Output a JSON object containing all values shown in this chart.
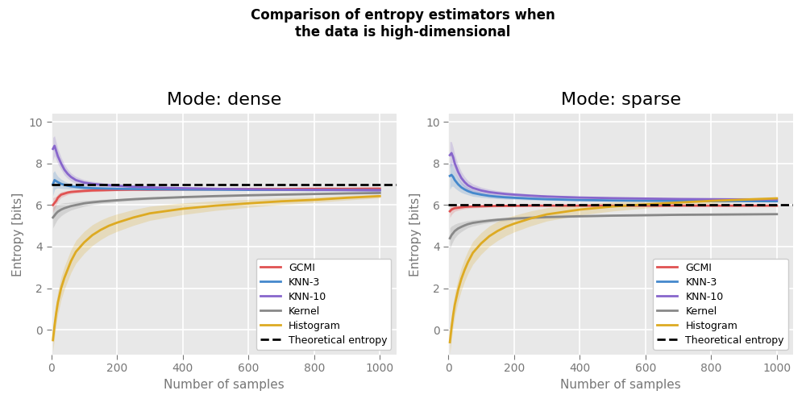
{
  "title": "Comparison of entropy estimators when\nthe data is high-dimensional",
  "title_fontsize": 12,
  "title_fontweight": "bold",
  "subplot_titles": [
    "Mode: dense",
    "Mode: sparse"
  ],
  "subplot_title_fontsize": 16,
  "xlabel": "Number of samples",
  "ylabel": "Entropy [bits]",
  "xlim": [
    0,
    1050
  ],
  "ylim": [
    -1.2,
    10.4
  ],
  "yticks": [
    0,
    2,
    4,
    6,
    8,
    10
  ],
  "xticks": [
    0,
    200,
    400,
    600,
    800,
    1000
  ],
  "theoretical_entropy_dense": 7.0,
  "theoretical_entropy_sparse": 6.0,
  "background_color": "#e8e8e8",
  "grid_color": "white",
  "colors": {
    "GCMI": "#e05252",
    "KNN-3": "#4488cc",
    "KNN-10": "#8866cc",
    "Kernel": "#888888",
    "Histogram": "#ddaa22"
  },
  "alpha_fill": 0.22,
  "line_width": 2.0,
  "legend_entries": [
    "GCMI",
    "KNN-3",
    "KNN-10",
    "Kernel",
    "Histogram",
    "Theoretical entropy"
  ],
  "dense": {
    "x": [
      5,
      10,
      15,
      20,
      30,
      40,
      50,
      60,
      75,
      100,
      125,
      150,
      175,
      200,
      250,
      300,
      400,
      500,
      600,
      700,
      800,
      900,
      1000
    ],
    "GCMI_mean": [
      6.0,
      6.1,
      6.2,
      6.35,
      6.5,
      6.55,
      6.6,
      6.63,
      6.65,
      6.68,
      6.7,
      6.71,
      6.72,
      6.73,
      6.74,
      6.74,
      6.75,
      6.76,
      6.77,
      6.77,
      6.78,
      6.78,
      6.79
    ],
    "GCMI_std": [
      0.35,
      0.28,
      0.22,
      0.18,
      0.14,
      0.12,
      0.1,
      0.09,
      0.08,
      0.07,
      0.06,
      0.06,
      0.05,
      0.05,
      0.04,
      0.04,
      0.04,
      0.03,
      0.03,
      0.03,
      0.02,
      0.02,
      0.02
    ],
    "KNN3_mean": [
      7.0,
      7.2,
      7.15,
      7.1,
      7.02,
      6.97,
      6.93,
      6.9,
      6.87,
      6.83,
      6.81,
      6.8,
      6.79,
      6.78,
      6.77,
      6.76,
      6.75,
      6.74,
      6.73,
      6.73,
      6.72,
      6.72,
      6.71
    ],
    "KNN3_std": [
      0.55,
      0.45,
      0.35,
      0.28,
      0.22,
      0.18,
      0.15,
      0.13,
      0.11,
      0.09,
      0.08,
      0.07,
      0.06,
      0.06,
      0.05,
      0.05,
      0.04,
      0.04,
      0.03,
      0.03,
      0.03,
      0.02,
      0.02
    ],
    "KNN10_mean": [
      8.7,
      8.85,
      8.6,
      8.35,
      8.0,
      7.7,
      7.5,
      7.35,
      7.2,
      7.08,
      7.02,
      6.98,
      6.95,
      6.93,
      6.88,
      6.85,
      6.81,
      6.78,
      6.76,
      6.74,
      6.73,
      6.72,
      6.71
    ],
    "KNN10_std": [
      0.55,
      0.48,
      0.42,
      0.37,
      0.3,
      0.26,
      0.22,
      0.19,
      0.17,
      0.14,
      0.12,
      0.11,
      0.09,
      0.08,
      0.07,
      0.06,
      0.05,
      0.05,
      0.04,
      0.04,
      0.04,
      0.03,
      0.03
    ],
    "Kernel_mean": [
      5.4,
      5.5,
      5.6,
      5.68,
      5.78,
      5.85,
      5.9,
      5.95,
      6.0,
      6.08,
      6.13,
      6.17,
      6.2,
      6.23,
      6.28,
      6.32,
      6.38,
      6.43,
      6.47,
      6.5,
      6.53,
      6.56,
      6.58
    ],
    "Kernel_std": [
      0.5,
      0.45,
      0.4,
      0.36,
      0.3,
      0.26,
      0.22,
      0.19,
      0.17,
      0.14,
      0.12,
      0.1,
      0.09,
      0.08,
      0.07,
      0.06,
      0.05,
      0.04,
      0.04,
      0.04,
      0.03,
      0.03,
      0.03
    ],
    "Histogram_mean": [
      -0.5,
      0.2,
      0.8,
      1.3,
      2.0,
      2.5,
      2.9,
      3.3,
      3.75,
      4.2,
      4.55,
      4.8,
      5.0,
      5.15,
      5.4,
      5.6,
      5.82,
      5.97,
      6.08,
      6.18,
      6.25,
      6.35,
      6.43
    ],
    "Histogram_std": [
      0.55,
      0.55,
      0.55,
      0.55,
      0.55,
      0.55,
      0.55,
      0.55,
      0.55,
      0.53,
      0.5,
      0.47,
      0.44,
      0.42,
      0.38,
      0.34,
      0.28,
      0.23,
      0.19,
      0.16,
      0.13,
      0.11,
      0.09
    ]
  },
  "sparse": {
    "x": [
      5,
      10,
      15,
      20,
      30,
      40,
      50,
      60,
      75,
      100,
      125,
      150,
      175,
      200,
      250,
      300,
      400,
      500,
      600,
      700,
      800,
      900,
      1000
    ],
    "GCMI_mean": [
      5.7,
      5.78,
      5.82,
      5.85,
      5.87,
      5.89,
      5.91,
      5.92,
      5.93,
      5.94,
      5.95,
      5.96,
      5.96,
      5.96,
      5.97,
      5.97,
      5.97,
      5.97,
      5.97,
      5.97,
      5.97,
      5.97,
      5.97
    ],
    "GCMI_std": [
      0.3,
      0.24,
      0.19,
      0.15,
      0.12,
      0.1,
      0.09,
      0.08,
      0.07,
      0.06,
      0.05,
      0.05,
      0.04,
      0.04,
      0.03,
      0.03,
      0.03,
      0.02,
      0.02,
      0.02,
      0.02,
      0.02,
      0.02
    ],
    "KNN3_mean": [
      7.4,
      7.45,
      7.35,
      7.2,
      7.0,
      6.85,
      6.75,
      6.67,
      6.58,
      6.5,
      6.44,
      6.4,
      6.37,
      6.35,
      6.31,
      6.28,
      6.24,
      6.22,
      6.21,
      6.2,
      6.19,
      6.19,
      6.18
    ],
    "KNN3_std": [
      0.65,
      0.55,
      0.45,
      0.38,
      0.3,
      0.25,
      0.21,
      0.18,
      0.16,
      0.13,
      0.11,
      0.1,
      0.09,
      0.08,
      0.07,
      0.06,
      0.05,
      0.04,
      0.04,
      0.04,
      0.03,
      0.03,
      0.03
    ],
    "KNN10_mean": [
      8.4,
      8.5,
      8.3,
      8.0,
      7.6,
      7.3,
      7.1,
      6.95,
      6.82,
      6.7,
      6.62,
      6.57,
      6.53,
      6.5,
      6.45,
      6.41,
      6.36,
      6.33,
      6.31,
      6.29,
      6.28,
      6.27,
      6.26
    ],
    "KNN10_std": [
      0.65,
      0.55,
      0.48,
      0.42,
      0.35,
      0.3,
      0.26,
      0.22,
      0.19,
      0.16,
      0.14,
      0.12,
      0.11,
      0.1,
      0.08,
      0.07,
      0.06,
      0.05,
      0.05,
      0.04,
      0.04,
      0.04,
      0.03
    ],
    "Kernel_mean": [
      4.4,
      4.55,
      4.65,
      4.75,
      4.87,
      4.95,
      5.02,
      5.08,
      5.14,
      5.2,
      5.25,
      5.29,
      5.32,
      5.35,
      5.39,
      5.42,
      5.46,
      5.49,
      5.51,
      5.53,
      5.54,
      5.55,
      5.56
    ],
    "Kernel_std": [
      0.5,
      0.44,
      0.38,
      0.33,
      0.27,
      0.23,
      0.2,
      0.17,
      0.15,
      0.12,
      0.1,
      0.09,
      0.08,
      0.07,
      0.06,
      0.05,
      0.05,
      0.04,
      0.04,
      0.03,
      0.03,
      0.03,
      0.03
    ],
    "Histogram_mean": [
      -0.6,
      0.1,
      0.7,
      1.2,
      1.9,
      2.45,
      2.88,
      3.25,
      3.7,
      4.15,
      4.5,
      4.75,
      4.95,
      5.1,
      5.35,
      5.55,
      5.78,
      5.93,
      6.03,
      6.12,
      6.2,
      6.26,
      6.32
    ],
    "Histogram_std": [
      0.55,
      0.55,
      0.55,
      0.55,
      0.55,
      0.55,
      0.55,
      0.55,
      0.55,
      0.52,
      0.49,
      0.46,
      0.43,
      0.4,
      0.36,
      0.32,
      0.26,
      0.22,
      0.18,
      0.15,
      0.12,
      0.1,
      0.08
    ]
  }
}
